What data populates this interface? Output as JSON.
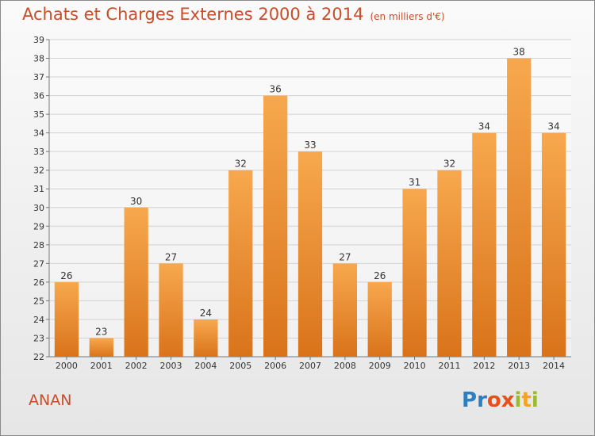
{
  "title": "Achats et Charges Externes 2000 à 2014",
  "subtitle": "(en milliers d'€)",
  "town": "ANAN",
  "logo": {
    "letters": [
      "P",
      "r",
      "o",
      "x",
      "i",
      "t",
      "i"
    ],
    "colors": [
      "#2c7fc1",
      "#2c7fc1",
      "#e94e1b",
      "#e94e1b",
      "#9bbb2d",
      "#f2a51e",
      "#9bbb2d"
    ]
  },
  "colors": {
    "bar_top": "#f7a84e",
    "bar_bottom": "#d9731a",
    "text_accent": "#c84d29"
  },
  "chart_data": {
    "type": "bar",
    "categories": [
      "2000",
      "2001",
      "2002",
      "2003",
      "2004",
      "2005",
      "2006",
      "2007",
      "2008",
      "2009",
      "2010",
      "2011",
      "2012",
      "2013",
      "2014"
    ],
    "values": [
      26,
      23,
      30,
      27,
      24,
      32,
      36,
      33,
      27,
      26,
      31,
      32,
      34,
      38,
      34
    ],
    "ylim": [
      22,
      39
    ],
    "yticks": [
      22,
      23,
      24,
      25,
      26,
      27,
      28,
      29,
      30,
      31,
      32,
      33,
      34,
      35,
      36,
      37,
      38,
      39
    ],
    "grid": true,
    "data_labels": true
  }
}
